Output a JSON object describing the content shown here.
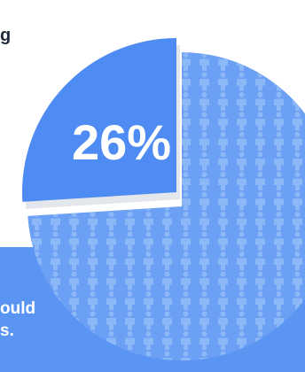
{
  "text_fragments": {
    "top": "g",
    "bottom_line1": "ould",
    "bottom_line2": "s."
  },
  "chart_data": {
    "type": "pie",
    "title": "",
    "slices": [
      {
        "label": "26%",
        "value": 26,
        "color": "#4e8bf3",
        "exploded": true
      },
      {
        "label": "",
        "value": 74,
        "color": "#6ca0f5",
        "pattern": "person-icons",
        "exploded": false
      }
    ]
  },
  "colors": {
    "banner": "#5b95f4",
    "shadow": "#e3e6ea",
    "icon": "#8db8f8",
    "label": "#ffffff"
  }
}
